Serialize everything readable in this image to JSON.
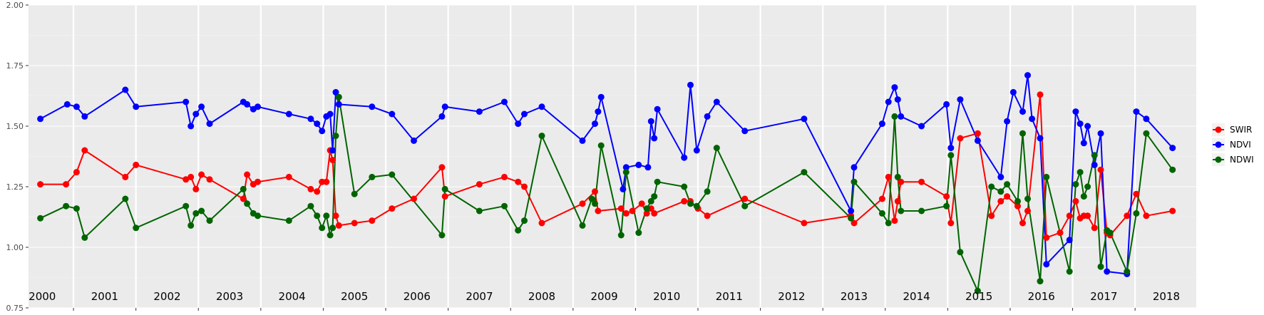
{
  "chart_data": {
    "type": "line",
    "title": "",
    "xlabel": "",
    "ylabel": "",
    "x_range": [
      1999.78,
      2018.48
    ],
    "ylim": [
      0.75,
      2.0
    ],
    "y_ticks": [
      "0.75",
      "1.00",
      "1.25",
      "1.50",
      "1.75",
      "2.00"
    ],
    "year_labels": [
      "2000",
      "2001",
      "2002",
      "2003",
      "2004",
      "2005",
      "2006",
      "2007",
      "2008",
      "2009",
      "2010",
      "2011",
      "2012",
      "2013",
      "2014",
      "2015",
      "2016",
      "2017",
      "2018"
    ],
    "grid": true,
    "legend_position": "right",
    "series": [
      {
        "name": "SWIR",
        "color": "#ff0000",
        "points": [
          [
            1999.97,
            1.26
          ],
          [
            2000.38,
            1.26
          ],
          [
            2000.55,
            1.31
          ],
          [
            2000.68,
            1.4
          ],
          [
            2001.33,
            1.29
          ],
          [
            2001.5,
            1.34
          ],
          [
            2002.3,
            1.28
          ],
          [
            2002.38,
            1.29
          ],
          [
            2002.46,
            1.24
          ],
          [
            2002.55,
            1.3
          ],
          [
            2002.68,
            1.28
          ],
          [
            2003.22,
            1.2
          ],
          [
            2003.28,
            1.3
          ],
          [
            2003.38,
            1.26
          ],
          [
            2003.45,
            1.27
          ],
          [
            2003.95,
            1.29
          ],
          [
            2004.3,
            1.24
          ],
          [
            2004.4,
            1.23
          ],
          [
            2004.48,
            1.27
          ],
          [
            2004.55,
            1.27
          ],
          [
            2004.61,
            1.4
          ],
          [
            2004.65,
            1.36
          ],
          [
            2004.7,
            1.13
          ],
          [
            2004.75,
            1.09
          ],
          [
            2005.0,
            1.1
          ],
          [
            2005.28,
            1.11
          ],
          [
            2005.6,
            1.16
          ],
          [
            2005.95,
            1.2
          ],
          [
            2006.4,
            1.33
          ],
          [
            2006.45,
            1.21
          ],
          [
            2007.0,
            1.26
          ],
          [
            2007.4,
            1.29
          ],
          [
            2007.62,
            1.27
          ],
          [
            2007.72,
            1.25
          ],
          [
            2008.0,
            1.1
          ],
          [
            2008.65,
            1.18
          ],
          [
            2008.85,
            1.23
          ],
          [
            2008.9,
            1.15
          ],
          [
            2009.27,
            1.16
          ],
          [
            2009.35,
            1.14
          ],
          [
            2009.45,
            1.15
          ],
          [
            2009.6,
            1.18
          ],
          [
            2009.68,
            1.14
          ],
          [
            2009.75,
            1.16
          ],
          [
            2009.8,
            1.14
          ],
          [
            2010.28,
            1.19
          ],
          [
            2010.38,
            1.19
          ],
          [
            2010.5,
            1.16
          ],
          [
            2010.65,
            1.13
          ],
          [
            2011.25,
            1.2
          ],
          [
            2012.2,
            1.1
          ],
          [
            2012.95,
            1.13
          ],
          [
            2013.0,
            1.1
          ],
          [
            2013.45,
            1.2
          ],
          [
            2013.55,
            1.29
          ],
          [
            2013.65,
            1.11
          ],
          [
            2013.7,
            1.19
          ],
          [
            2013.75,
            1.27
          ],
          [
            2014.08,
            1.27
          ],
          [
            2014.48,
            1.21
          ],
          [
            2014.55,
            1.1
          ],
          [
            2014.7,
            1.45
          ],
          [
            2014.98,
            1.47
          ],
          [
            2015.2,
            1.13
          ],
          [
            2015.35,
            1.19
          ],
          [
            2015.45,
            1.21
          ],
          [
            2015.62,
            1.17
          ],
          [
            2015.7,
            1.1
          ],
          [
            2015.78,
            1.15
          ],
          [
            2015.98,
            1.63
          ],
          [
            2016.08,
            1.04
          ],
          [
            2016.3,
            1.06
          ],
          [
            2016.45,
            1.13
          ],
          [
            2016.55,
            1.19
          ],
          [
            2016.62,
            1.12
          ],
          [
            2016.68,
            1.13
          ],
          [
            2016.74,
            1.13
          ],
          [
            2016.85,
            1.08
          ],
          [
            2016.95,
            1.32
          ],
          [
            2017.05,
            1.06
          ],
          [
            2017.1,
            1.05
          ],
          [
            2017.37,
            1.13
          ],
          [
            2017.52,
            1.22
          ],
          [
            2017.68,
            1.13
          ],
          [
            2018.1,
            1.15
          ]
        ]
      },
      {
        "name": "NDVI",
        "color": "#0000ff",
        "points": [
          [
            1999.97,
            1.53
          ],
          [
            2000.4,
            1.59
          ],
          [
            2000.55,
            1.58
          ],
          [
            2000.68,
            1.54
          ],
          [
            2001.33,
            1.65
          ],
          [
            2001.5,
            1.58
          ],
          [
            2002.3,
            1.6
          ],
          [
            2002.38,
            1.5
          ],
          [
            2002.46,
            1.55
          ],
          [
            2002.55,
            1.58
          ],
          [
            2002.68,
            1.51
          ],
          [
            2003.22,
            1.6
          ],
          [
            2003.28,
            1.59
          ],
          [
            2003.38,
            1.57
          ],
          [
            2003.45,
            1.58
          ],
          [
            2003.95,
            1.55
          ],
          [
            2004.3,
            1.53
          ],
          [
            2004.4,
            1.51
          ],
          [
            2004.48,
            1.48
          ],
          [
            2004.55,
            1.54
          ],
          [
            2004.61,
            1.55
          ],
          [
            2004.65,
            1.4
          ],
          [
            2004.7,
            1.64
          ],
          [
            2004.75,
            1.59
          ],
          [
            2005.28,
            1.58
          ],
          [
            2005.6,
            1.55
          ],
          [
            2005.95,
            1.44
          ],
          [
            2006.4,
            1.54
          ],
          [
            2006.45,
            1.58
          ],
          [
            2007.0,
            1.56
          ],
          [
            2007.4,
            1.6
          ],
          [
            2007.62,
            1.51
          ],
          [
            2007.72,
            1.55
          ],
          [
            2008.0,
            1.58
          ],
          [
            2008.65,
            1.44
          ],
          [
            2008.85,
            1.51
          ],
          [
            2008.9,
            1.56
          ],
          [
            2008.95,
            1.62
          ],
          [
            2009.3,
            1.24
          ],
          [
            2009.35,
            1.33
          ],
          [
            2009.55,
            1.34
          ],
          [
            2009.7,
            1.33
          ],
          [
            2009.75,
            1.52
          ],
          [
            2009.8,
            1.45
          ],
          [
            2009.85,
            1.57
          ],
          [
            2010.28,
            1.37
          ],
          [
            2010.38,
            1.67
          ],
          [
            2010.48,
            1.4
          ],
          [
            2010.65,
            1.54
          ],
          [
            2010.8,
            1.6
          ],
          [
            2011.25,
            1.48
          ],
          [
            2012.2,
            1.53
          ],
          [
            2012.95,
            1.15
          ],
          [
            2013.0,
            1.33
          ],
          [
            2013.45,
            1.51
          ],
          [
            2013.55,
            1.6
          ],
          [
            2013.65,
            1.66
          ],
          [
            2013.7,
            1.61
          ],
          [
            2013.75,
            1.54
          ],
          [
            2014.08,
            1.5
          ],
          [
            2014.48,
            1.59
          ],
          [
            2014.55,
            1.41
          ],
          [
            2014.7,
            1.61
          ],
          [
            2014.98,
            1.44
          ],
          [
            2015.35,
            1.29
          ],
          [
            2015.45,
            1.52
          ],
          [
            2015.55,
            1.64
          ],
          [
            2015.7,
            1.56
          ],
          [
            2015.78,
            1.71
          ],
          [
            2015.85,
            1.53
          ],
          [
            2015.98,
            1.45
          ],
          [
            2016.08,
            0.93
          ],
          [
            2016.45,
            1.03
          ],
          [
            2016.55,
            1.56
          ],
          [
            2016.62,
            1.51
          ],
          [
            2016.68,
            1.43
          ],
          [
            2016.74,
            1.5
          ],
          [
            2016.85,
            1.34
          ],
          [
            2016.95,
            1.47
          ],
          [
            2017.05,
            0.9
          ],
          [
            2017.37,
            0.89
          ],
          [
            2017.52,
            1.56
          ],
          [
            2017.68,
            1.53
          ],
          [
            2018.1,
            1.41
          ]
        ]
      },
      {
        "name": "NDWI",
        "color": "#006400",
        "points": [
          [
            1999.97,
            1.12
          ],
          [
            2000.38,
            1.17
          ],
          [
            2000.55,
            1.16
          ],
          [
            2000.68,
            1.04
          ],
          [
            2001.33,
            1.2
          ],
          [
            2001.5,
            1.08
          ],
          [
            2002.3,
            1.17
          ],
          [
            2002.38,
            1.09
          ],
          [
            2002.46,
            1.14
          ],
          [
            2002.55,
            1.15
          ],
          [
            2002.68,
            1.11
          ],
          [
            2003.22,
            1.24
          ],
          [
            2003.28,
            1.18
          ],
          [
            2003.38,
            1.14
          ],
          [
            2003.45,
            1.13
          ],
          [
            2003.95,
            1.11
          ],
          [
            2004.3,
            1.17
          ],
          [
            2004.4,
            1.13
          ],
          [
            2004.48,
            1.08
          ],
          [
            2004.55,
            1.13
          ],
          [
            2004.61,
            1.05
          ],
          [
            2004.65,
            1.08
          ],
          [
            2004.7,
            1.46
          ],
          [
            2004.75,
            1.62
          ],
          [
            2005.0,
            1.22
          ],
          [
            2005.28,
            1.29
          ],
          [
            2005.6,
            1.3
          ],
          [
            2006.4,
            1.05
          ],
          [
            2006.45,
            1.24
          ],
          [
            2007.0,
            1.15
          ],
          [
            2007.4,
            1.17
          ],
          [
            2007.62,
            1.07
          ],
          [
            2007.72,
            1.11
          ],
          [
            2008.0,
            1.46
          ],
          [
            2008.65,
            1.09
          ],
          [
            2008.8,
            1.2
          ],
          [
            2008.85,
            1.18
          ],
          [
            2008.95,
            1.42
          ],
          [
            2009.27,
            1.05
          ],
          [
            2009.35,
            1.31
          ],
          [
            2009.55,
            1.06
          ],
          [
            2009.68,
            1.16
          ],
          [
            2009.75,
            1.19
          ],
          [
            2009.8,
            1.21
          ],
          [
            2009.85,
            1.27
          ],
          [
            2010.28,
            1.25
          ],
          [
            2010.38,
            1.18
          ],
          [
            2010.48,
            1.17
          ],
          [
            2010.65,
            1.23
          ],
          [
            2010.8,
            1.41
          ],
          [
            2011.25,
            1.17
          ],
          [
            2012.2,
            1.31
          ],
          [
            2012.95,
            1.12
          ],
          [
            2013.0,
            1.27
          ],
          [
            2013.45,
            1.14
          ],
          [
            2013.55,
            1.1
          ],
          [
            2013.65,
            1.54
          ],
          [
            2013.7,
            1.29
          ],
          [
            2013.75,
            1.15
          ],
          [
            2014.08,
            1.15
          ],
          [
            2014.48,
            1.17
          ],
          [
            2014.55,
            1.38
          ],
          [
            2014.7,
            0.98
          ],
          [
            2014.98,
            0.82
          ],
          [
            2015.2,
            1.25
          ],
          [
            2015.35,
            1.23
          ],
          [
            2015.45,
            1.26
          ],
          [
            2015.62,
            1.19
          ],
          [
            2015.7,
            1.47
          ],
          [
            2015.78,
            1.2
          ],
          [
            2015.98,
            0.86
          ],
          [
            2016.08,
            1.29
          ],
          [
            2016.45,
            0.9
          ],
          [
            2016.55,
            1.26
          ],
          [
            2016.62,
            1.31
          ],
          [
            2016.68,
            1.21
          ],
          [
            2016.74,
            1.25
          ],
          [
            2016.85,
            1.38
          ],
          [
            2016.95,
            0.92
          ],
          [
            2017.05,
            1.07
          ],
          [
            2017.1,
            1.06
          ],
          [
            2017.37,
            0.9
          ],
          [
            2017.52,
            1.14
          ],
          [
            2017.68,
            1.47
          ],
          [
            2018.1,
            1.32
          ]
        ]
      }
    ]
  }
}
